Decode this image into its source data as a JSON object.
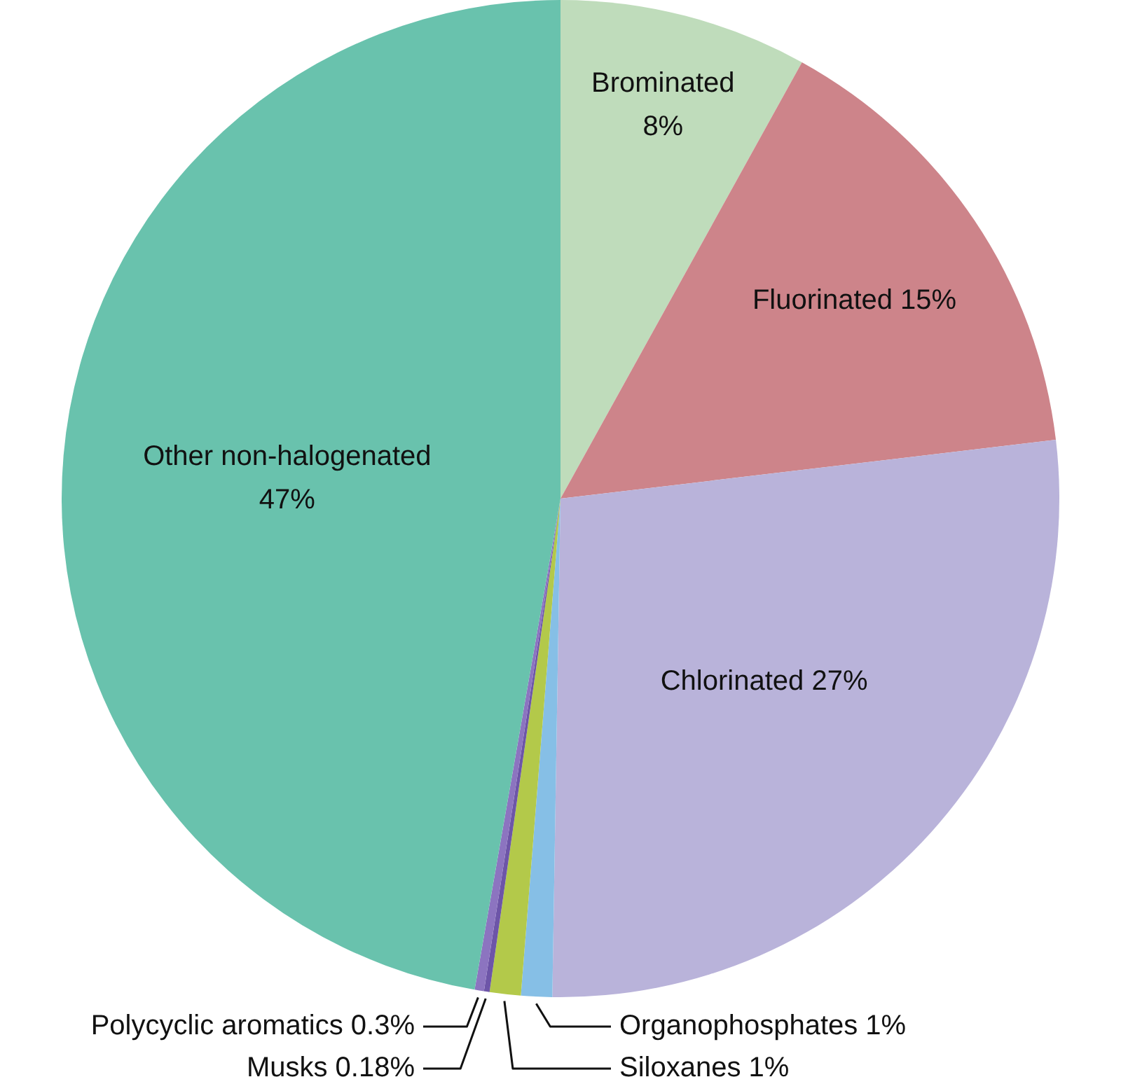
{
  "chart_data": {
    "type": "pie",
    "categories": [
      "Brominated",
      "Fluorinated",
      "Chlorinated",
      "Organophosphates",
      "Siloxanes",
      "Musks",
      "Polycyclic aromatics",
      "Other non-halogenated"
    ],
    "values": [
      8,
      15,
      27,
      1,
      1,
      0.18,
      0.3,
      47
    ],
    "value_labels": [
      "8%",
      "15%",
      "27%",
      "1%",
      "1%",
      "0.18%",
      "0.3%",
      "47%"
    ],
    "colors": [
      "#bfdcbb",
      "#cd848a",
      "#b9b3da",
      "#86bfe6",
      "#b3c94a",
      "#6d55a8",
      "#8c74c0",
      "#69c2ad"
    ]
  }
}
